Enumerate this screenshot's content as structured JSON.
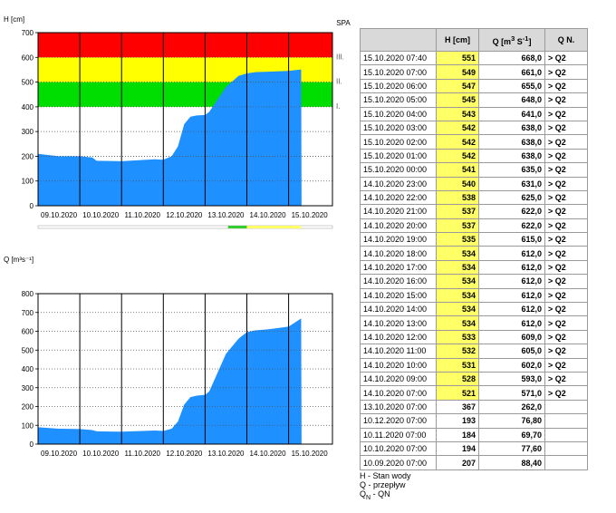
{
  "chart_data": [
    {
      "type": "area",
      "title": "",
      "ylabel": "H [cm]",
      "station_label": "SPA",
      "ylim": [
        0,
        700
      ],
      "yticks": [
        0,
        100,
        200,
        300,
        400,
        500,
        600,
        700
      ],
      "xlim_days": [
        0,
        7.05
      ],
      "x_tick_labels": [
        "09.10.2020",
        "10.10.2020",
        "11.10.2020",
        "12.10.2020",
        "13.10.2020",
        "14.10.2020",
        "15.10.2020"
      ],
      "zones": [
        {
          "name": "I.",
          "from": 400,
          "to": 500,
          "color": "#00dd00"
        },
        {
          "name": "II.",
          "from": 500,
          "to": 600,
          "color": "#ffff00"
        },
        {
          "name": "III.",
          "from": 600,
          "to": 700,
          "color": "#ff0000"
        }
      ],
      "area_color": "#1e90ff",
      "points_x_days": [
        0,
        0.5,
        1.0,
        1.3,
        1.4,
        2.0,
        2.5,
        2.8,
        3.0,
        3.2,
        3.35,
        3.5,
        3.65,
        3.8,
        4.0,
        4.1,
        4.3,
        4.5,
        4.8,
        5.0,
        5.2,
        5.5,
        6.0,
        6.3,
        6.31
      ],
      "points_y": [
        210,
        200,
        200,
        195,
        182,
        180,
        185,
        188,
        186,
        200,
        240,
        330,
        360,
        365,
        367,
        380,
        430,
        480,
        525,
        535,
        540,
        542,
        545,
        551,
        0
      ],
      "bottom_strip": [
        {
          "from_day": 4.55,
          "to_day": 5.0,
          "color": "#33cc33"
        },
        {
          "from_day": 5.0,
          "to_day": 6.3,
          "color": "#ffff66"
        }
      ]
    },
    {
      "type": "area",
      "title": "",
      "ylabel": "Q [m³s⁻¹]",
      "ylim": [
        0,
        800
      ],
      "yticks": [
        0,
        100,
        200,
        300,
        400,
        500,
        600,
        700,
        800
      ],
      "xlim_days": [
        0,
        7.05
      ],
      "x_tick_labels": [
        "09.10.2020",
        "10.10.2020",
        "11.10.2020",
        "12.10.2020",
        "13.10.2020",
        "14.10.2020",
        "15.10.2020"
      ],
      "area_color": "#1e90ff",
      "points_x_days": [
        0,
        0.5,
        1.0,
        1.3,
        1.4,
        2.0,
        2.5,
        2.8,
        3.0,
        3.2,
        3.35,
        3.5,
        3.65,
        3.8,
        4.0,
        4.1,
        4.3,
        4.5,
        4.8,
        5.0,
        5.2,
        5.5,
        6.0,
        6.3,
        6.31
      ],
      "points_y": [
        90,
        82,
        80,
        75,
        68,
        66,
        70,
        72,
        70,
        82,
        120,
        210,
        250,
        258,
        262,
        280,
        380,
        480,
        560,
        595,
        605,
        610,
        625,
        668,
        0
      ]
    }
  ],
  "table": {
    "headers": {
      "date": "",
      "h": "H [cm]",
      "q_prefix": "Q [m",
      "q_sup3": "3",
      "q_mid": " S",
      "q_sup_neg": "-1",
      "q_suffix": "]",
      "qn": "Q N."
    },
    "rows": [
      {
        "date": "15.10.2020 07:40",
        "h": "551",
        "q": "668,0",
        "qn": "> Q2",
        "hl": true
      },
      {
        "date": "15.10.2020 07:00",
        "h": "549",
        "q": "661,0",
        "qn": "> Q2",
        "hl": true
      },
      {
        "date": "15.10.2020 06:00",
        "h": "547",
        "q": "655,0",
        "qn": "> Q2",
        "hl": true
      },
      {
        "date": "15.10.2020 05:00",
        "h": "545",
        "q": "648,0",
        "qn": "> Q2",
        "hl": true
      },
      {
        "date": "15.10.2020 04:00",
        "h": "543",
        "q": "641,0",
        "qn": "> Q2",
        "hl": true
      },
      {
        "date": "15.10.2020 03:00",
        "h": "542",
        "q": "638,0",
        "qn": "> Q2",
        "hl": true
      },
      {
        "date": "15.10.2020 02:00",
        "h": "542",
        "q": "638,0",
        "qn": "> Q2",
        "hl": true
      },
      {
        "date": "15.10.2020 01:00",
        "h": "542",
        "q": "638,0",
        "qn": "> Q2",
        "hl": true
      },
      {
        "date": "15.10.2020 00:00",
        "h": "541",
        "q": "635,0",
        "qn": "> Q2",
        "hl": true
      },
      {
        "date": "14.10.2020 23:00",
        "h": "540",
        "q": "631,0",
        "qn": "> Q2",
        "hl": true
      },
      {
        "date": "14.10.2020 22:00",
        "h": "538",
        "q": "625,0",
        "qn": "> Q2",
        "hl": true
      },
      {
        "date": "14.10.2020 21:00",
        "h": "537",
        "q": "622,0",
        "qn": "> Q2",
        "hl": true
      },
      {
        "date": "14.10.2020 20:00",
        "h": "537",
        "q": "622,0",
        "qn": "> Q2",
        "hl": true
      },
      {
        "date": "14.10.2020 19:00",
        "h": "535",
        "q": "615,0",
        "qn": "> Q2",
        "hl": true
      },
      {
        "date": "14.10.2020 18:00",
        "h": "534",
        "q": "612,0",
        "qn": "> Q2",
        "hl": true
      },
      {
        "date": "14.10.2020 17:00",
        "h": "534",
        "q": "612,0",
        "qn": "> Q2",
        "hl": true
      },
      {
        "date": "14.10.2020 16:00",
        "h": "534",
        "q": "612,0",
        "qn": "> Q2",
        "hl": true
      },
      {
        "date": "14.10.2020 15:00",
        "h": "534",
        "q": "612,0",
        "qn": "> Q2",
        "hl": true
      },
      {
        "date": "14.10.2020 14:00",
        "h": "534",
        "q": "612,0",
        "qn": "> Q2",
        "hl": true
      },
      {
        "date": "14.10.2020 13:00",
        "h": "534",
        "q": "612,0",
        "qn": "> Q2",
        "hl": true
      },
      {
        "date": "14.10.2020 12:00",
        "h": "533",
        "q": "609,0",
        "qn": "> Q2",
        "hl": true
      },
      {
        "date": "14.10.2020 11:00",
        "h": "532",
        "q": "605,0",
        "qn": "> Q2",
        "hl": true
      },
      {
        "date": "14.10.2020 10:00",
        "h": "531",
        "q": "602,0",
        "qn": "> Q2",
        "hl": true
      },
      {
        "date": "14.10.2020 09:00",
        "h": "528",
        "q": "593,0",
        "qn": "> Q2",
        "hl": true
      },
      {
        "date": "14.10.2020 07:00",
        "h": "521",
        "q": "571,0",
        "qn": "> Q2",
        "hl": true
      },
      {
        "date": "13.10.2020 07:00",
        "h": "367",
        "q": "262,0",
        "qn": "",
        "hl": false
      },
      {
        "date": "10.12.2020 07:00",
        "h": "193",
        "q": "76,80",
        "qn": "",
        "hl": false
      },
      {
        "date": "10.11.2020 07:00",
        "h": "184",
        "q": "69,70",
        "qn": "",
        "hl": false
      },
      {
        "date": "10.10.2020 07:00",
        "h": "194",
        "q": "77,60",
        "qn": "",
        "hl": false
      },
      {
        "date": "10.09.2020 07:00",
        "h": "207",
        "q": "88,40",
        "qn": "",
        "hl": false
      }
    ]
  },
  "legend": {
    "h_line": "H - Stan wody",
    "q_line": "Q - przepływ",
    "qn_letter": "Q",
    "qn_sub": "N",
    "qn_rest": " - QN"
  }
}
